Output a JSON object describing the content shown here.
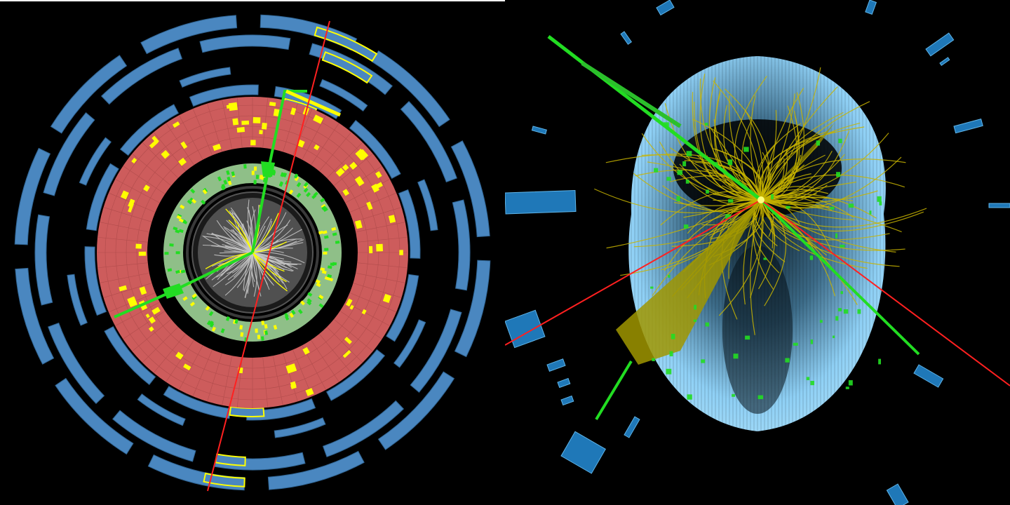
{
  "image": {
    "left_view": "transverse",
    "right_view": "perspective-3d"
  },
  "colors": {
    "background": "#000000",
    "muon_chamber": "#4a87c0",
    "muon_chamber_edge": "#2f6391",
    "hadronic_calorimeter": "#cd5c5c",
    "em_calorimeter": "#8fbf88",
    "energy_deposit": "#ffff00",
    "green_track": "#22dd22",
    "red_track": "#ff2020",
    "inner_tracks": "#c8c8c8",
    "soft_tracks": "#c8b400",
    "jet_cone": "#a09600",
    "barrel_shell": "#8fd0f5"
  }
}
